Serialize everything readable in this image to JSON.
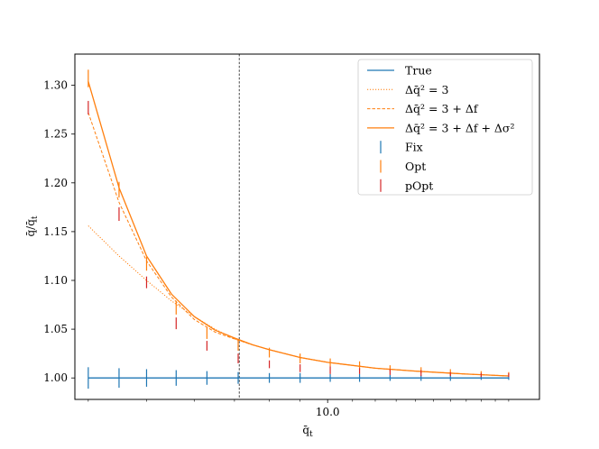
{
  "chart_data": {
    "type": "line",
    "title": "",
    "xlabel": "q̄t",
    "ylabel": "q̄/q̄t",
    "xscale": "log",
    "xlim": [
      3.8,
      22.5
    ],
    "ylim": [
      0.978,
      1.332
    ],
    "x_ticks": [
      10.0
    ],
    "x_tick_labels": [
      "10.0"
    ],
    "y_ticks": [
      1.0,
      1.05,
      1.1,
      1.15,
      1.2,
      1.25,
      1.3
    ],
    "y_tick_labels": [
      "1.00",
      "1.05",
      "1.10",
      "1.15",
      "1.20",
      "1.25",
      "1.30"
    ],
    "vline_x": 7.13,
    "grid": false,
    "legend_position": "upper right",
    "legend": [
      {
        "label": "True",
        "style": "solid-line",
        "color": "#1f77b4"
      },
      {
        "label": "Δq̄² = 3",
        "style": "dotted-line",
        "color": "#ff7f0e"
      },
      {
        "label": "Δq̄² = 3 + Δf",
        "style": "dashed-line",
        "color": "#ff7f0e"
      },
      {
        "label": "Δq̄² = 3 + Δf + Δσ²",
        "style": "solid-line",
        "color": "#ff7f0e"
      },
      {
        "label": "Fix",
        "style": "errorbar",
        "color": "#1f77b4"
      },
      {
        "label": "Opt",
        "style": "errorbar",
        "color": "#ff7f0e"
      },
      {
        "label": "pOpt",
        "style": "errorbar",
        "color": "#d62728"
      }
    ],
    "lines": [
      {
        "name": "True",
        "style": "solid",
        "color": "#1f77b4",
        "x": [
          4.0,
          20.0
        ],
        "y": [
          1.0,
          1.0
        ]
      },
      {
        "name": "Δq̄² = 3",
        "style": "dotted",
        "color": "#ff7f0e",
        "x": [
          4.0,
          4.5,
          5.0,
          5.5,
          6.0,
          6.5,
          7.0,
          7.5,
          8.0,
          9.0,
          10.0,
          12.0,
          14.0,
          17.0,
          20.0
        ],
        "y": [
          1.156,
          1.125,
          1.1,
          1.079,
          1.063,
          1.05,
          1.04,
          1.034,
          1.029,
          1.021,
          1.016,
          1.01,
          1.007,
          1.004,
          1.002
        ]
      },
      {
        "name": "Δq̄² = 3 + Δf",
        "style": "dashed",
        "color": "#ff7f0e",
        "x": [
          4.0,
          4.5,
          5.0,
          5.5,
          6.0,
          6.5,
          7.0,
          7.5,
          8.0,
          9.0,
          10.0,
          12.0,
          14.0,
          17.0,
          20.0
        ],
        "y": [
          1.272,
          1.18,
          1.12,
          1.083,
          1.06,
          1.047,
          1.04,
          1.034,
          1.029,
          1.021,
          1.016,
          1.01,
          1.007,
          1.004,
          1.002
        ]
      },
      {
        "name": "Δq̄² = 3 + Δf + Δσ²",
        "style": "solid",
        "color": "#ff7f0e",
        "x": [
          4.0,
          4.5,
          5.0,
          5.5,
          6.0,
          6.5,
          7.0,
          7.5,
          8.0,
          9.0,
          10.0,
          12.0,
          14.0,
          17.0,
          20.0
        ],
        "y": [
          1.304,
          1.195,
          1.125,
          1.086,
          1.063,
          1.049,
          1.041,
          1.034,
          1.029,
          1.021,
          1.016,
          1.01,
          1.007,
          1.004,
          1.002
        ]
      }
    ],
    "errorbars": [
      {
        "name": "Fix",
        "color": "#1f77b4",
        "x": [
          4.0,
          4.5,
          5.0,
          5.6,
          6.3,
          7.1,
          8.0,
          9.0,
          10.1,
          11.3,
          12.7,
          14.3,
          16.0,
          18.0,
          20.0
        ],
        "y": [
          1.0,
          1.0,
          1.0,
          1.0,
          1.0,
          1.0,
          1.0,
          1.0,
          1.0,
          1.0,
          1.0,
          1.0,
          1.0,
          1.0,
          1.0
        ],
        "err": [
          0.011,
          0.01,
          0.009,
          0.008,
          0.007,
          0.006,
          0.005,
          0.005,
          0.004,
          0.004,
          0.003,
          0.003,
          0.003,
          0.002,
          0.002
        ]
      },
      {
        "name": "Opt",
        "color": "#ff7f0e",
        "x": [
          4.0,
          4.5,
          5.0,
          5.6,
          6.3,
          7.1,
          8.0,
          9.0,
          10.1,
          11.3,
          12.7,
          14.3,
          16.0,
          18.0,
          20.0
        ],
        "y": [
          1.307,
          1.193,
          1.117,
          1.072,
          1.046,
          1.034,
          1.026,
          1.02,
          1.016,
          1.013,
          1.01,
          1.008,
          1.006,
          1.005,
          1.004
        ],
        "err": [
          0.009,
          0.008,
          0.007,
          0.007,
          0.006,
          0.006,
          0.005,
          0.005,
          0.004,
          0.004,
          0.003,
          0.003,
          0.003,
          0.002,
          0.002
        ]
      },
      {
        "name": "pOpt",
        "color": "#d62728",
        "x": [
          4.0,
          4.5,
          5.0,
          5.6,
          6.3,
          7.1,
          8.0,
          9.0,
          10.1,
          11.3,
          12.7,
          14.3,
          16.0,
          18.0,
          20.0
        ],
        "y": [
          1.277,
          1.168,
          1.098,
          1.056,
          1.033,
          1.02,
          1.014,
          1.01,
          1.008,
          1.007,
          1.006,
          1.005,
          1.004,
          1.003,
          1.003
        ],
        "err": [
          0.007,
          0.007,
          0.006,
          0.006,
          0.005,
          0.005,
          0.004,
          0.004,
          0.004,
          0.003,
          0.003,
          0.003,
          0.002,
          0.002,
          0.002
        ]
      }
    ]
  }
}
